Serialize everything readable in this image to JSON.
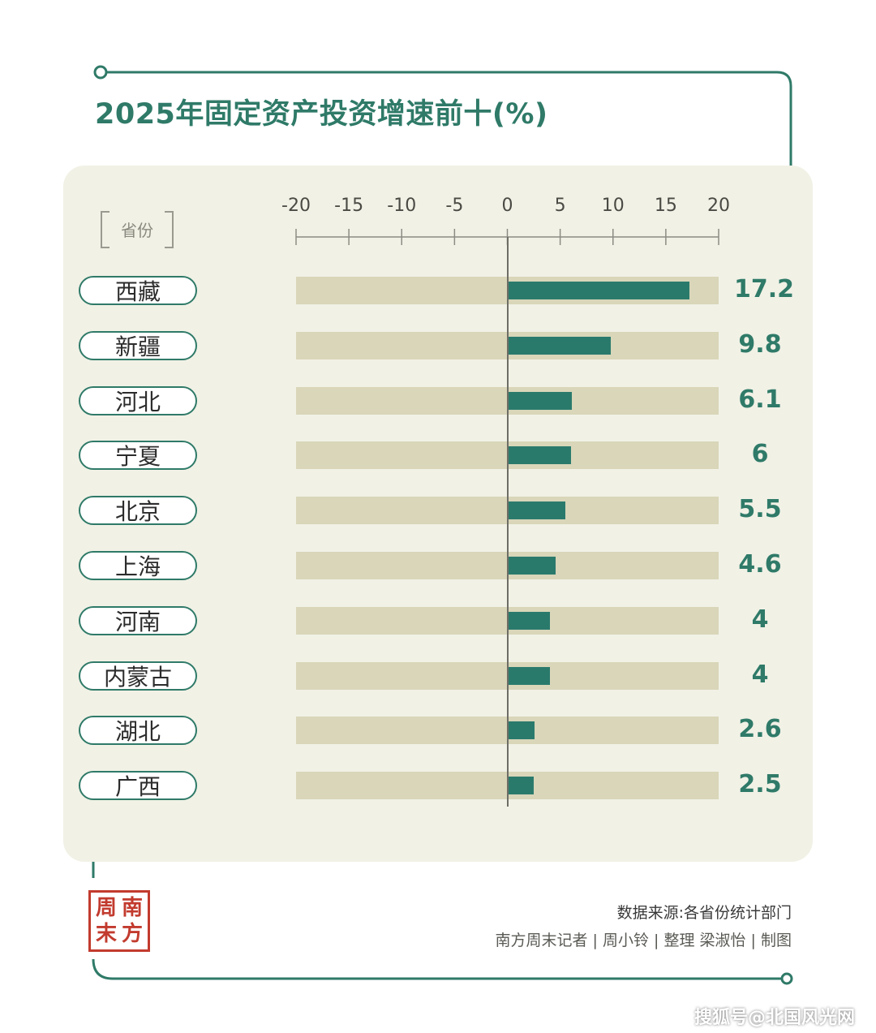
{
  "title": "2025年固定资产投资增速前十(%)",
  "axis_header": "省份",
  "source": "数据来源:各省份统计部门",
  "credits": "南方周末记者 | 周小铃 | 整理   梁淑怡 | 制图",
  "logo_text": [
    "周",
    "南",
    "末",
    "方"
  ],
  "watermark": "搜狐号@北国风光网",
  "colors": {
    "accent": "#2f7a68",
    "bar": "#2a7a6c",
    "track": "#d9d6b9",
    "panel": "#f1f1e6",
    "stamp": "#c23b2e"
  },
  "chart_data": {
    "type": "bar",
    "orientation": "horizontal",
    "categories": [
      "西藏",
      "新疆",
      "河北",
      "宁夏",
      "北京",
      "上海",
      "河南",
      "内蒙古",
      "湖北",
      "广西"
    ],
    "values": [
      17.2,
      9.8,
      6.1,
      6,
      5.5,
      4.6,
      4,
      4,
      2.6,
      2.5
    ],
    "value_labels": [
      "17.2",
      "9.8",
      "6.1",
      "6",
      "5.5",
      "4.6",
      "4",
      "4",
      "2.6",
      "2.5"
    ],
    "xlim": [
      -20,
      20
    ],
    "ticks": [
      -20,
      -15,
      -10,
      -5,
      0,
      5,
      10,
      15,
      20
    ],
    "title": "2025年固定资产投资增速前十(%)",
    "ylabel": "省份",
    "grid": false
  }
}
